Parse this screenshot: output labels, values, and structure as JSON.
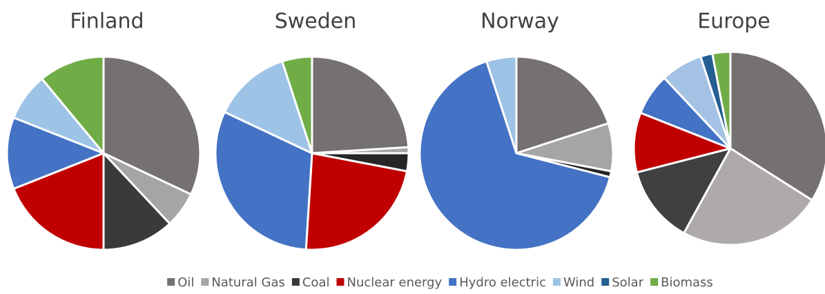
{
  "chart_data": [
    {
      "type": "pie",
      "title": "Finland",
      "categories": [
        "Oil",
        "Natural Gas",
        "Coal",
        "Nuclear energy",
        "Hydro electric",
        "Wind",
        "Solar",
        "Biomass"
      ],
      "values": [
        32,
        6,
        12,
        19,
        12,
        8,
        0,
        11
      ],
      "colors": [
        "#767171",
        "#a5a5a5",
        "#3a3a3a",
        "#c00000",
        "#4472c4",
        "#9dc3e6",
        "#255e91",
        "#70ad47"
      ]
    },
    {
      "type": "pie",
      "title": "Sweden",
      "categories": [
        "Oil",
        "Natural Gas",
        "Coal",
        "Nuclear energy",
        "Hydro electric",
        "Wind",
        "Solar",
        "Biomass"
      ],
      "values": [
        24,
        1,
        3,
        23,
        31,
        13,
        0,
        5
      ],
      "colors": [
        "#767171",
        "#a5a5a5",
        "#262626",
        "#c00000",
        "#4472c4",
        "#9dc3e6",
        "#255e91",
        "#70ad47"
      ]
    },
    {
      "type": "pie",
      "title": "Norway",
      "categories": [
        "Oil",
        "Natural Gas",
        "Coal",
        "Nuclear energy",
        "Hydro electric",
        "Wind",
        "Solar",
        "Biomass"
      ],
      "values": [
        20,
        8,
        1,
        0,
        66,
        5,
        0,
        0
      ],
      "colors": [
        "#767171",
        "#a5a5a5",
        "#262626",
        "#c00000",
        "#4472c4",
        "#9dc3e6",
        "#255e91",
        "#70ad47"
      ]
    },
    {
      "type": "pie",
      "title": "Europe",
      "categories": [
        "Oil",
        "Natural Gas",
        "Coal",
        "Nuclear energy",
        "Hydro electric",
        "Wind",
        "Solar",
        "Biomass"
      ],
      "values": [
        34,
        24,
        13,
        10,
        7,
        7,
        2,
        3
      ],
      "colors": [
        "#767171",
        "#aeaaaa",
        "#404040",
        "#c00000",
        "#4472c4",
        "#a4c2e4",
        "#255e91",
        "#70ad47"
      ]
    }
  ]
}
